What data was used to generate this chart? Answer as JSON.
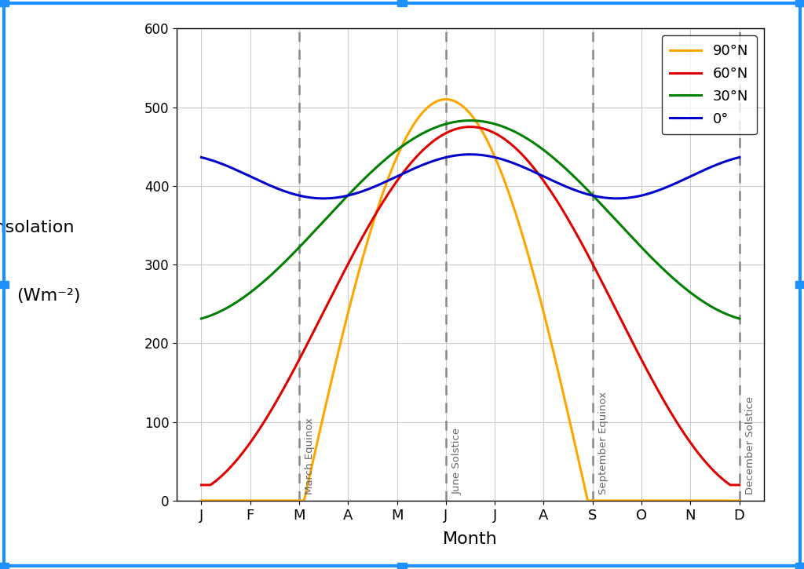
{
  "xlabel": "Month",
  "months": [
    "J",
    "F",
    "M",
    "A",
    "M",
    "J",
    "J",
    "A",
    "S",
    "O",
    "N",
    "D"
  ],
  "ylim": [
    0,
    600
  ],
  "yticks": [
    0,
    100,
    200,
    300,
    400,
    500,
    600
  ],
  "dashed_line_x": [
    2,
    5,
    8,
    11
  ],
  "dashed_labels": [
    "March Equinox",
    "June Solstice",
    "September Equinox",
    "December Solstice"
  ],
  "legend_entries": [
    {
      "label": "90°N",
      "color": "#FFA500"
    },
    {
      "label": "60°N",
      "color": "#DD0000"
    },
    {
      "label": "30°N",
      "color": "#008000"
    },
    {
      "label": "0°",
      "color": "#0000CC"
    }
  ],
  "background_color": "#ffffff",
  "grid_color": "#cccccc",
  "border_color": "#1E90FF",
  "ylabel_line1": "Insolation",
  "ylabel_line2": "(Wm⁻²)"
}
